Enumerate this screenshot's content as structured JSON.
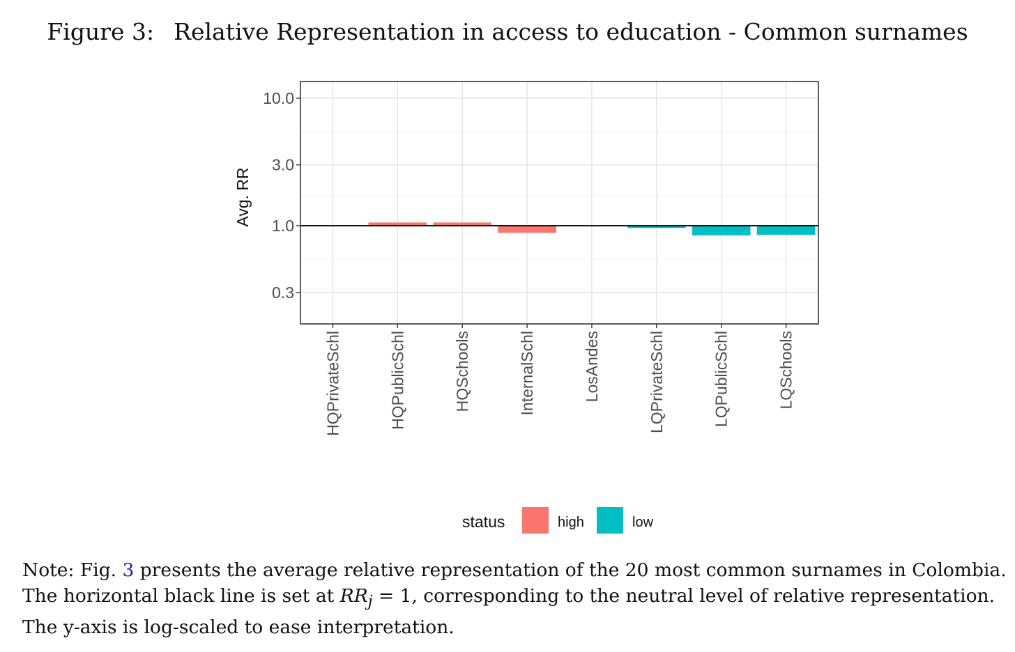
{
  "figure": {
    "number_label": "Figure 3:",
    "title": "Relative Representation in access to education - Common surnames"
  },
  "chart_data": {
    "type": "bar",
    "categories": [
      "HQPrivateSchl",
      "HQPublicSchl",
      "HQSchools",
      "InternalSchl",
      "LosAndes",
      "LQPrivateSchl",
      "LQPublicSchl",
      "LQSchools"
    ],
    "values": [
      1.0,
      1.06,
      1.06,
      0.88,
      1.0,
      0.96,
      0.84,
      0.85
    ],
    "status": [
      "high",
      "high",
      "high",
      "high",
      "high",
      "low",
      "low",
      "low"
    ],
    "ylabel": "Avg. RR",
    "xlabel": "",
    "yscale": "log10",
    "ylim": [
      0.17,
      13.5
    ],
    "yticks": [
      10.0,
      3.0,
      1.0,
      0.3
    ],
    "ytick_labels": [
      "10.0",
      "3.0",
      "1.0",
      "0.3"
    ],
    "reference_line": 1.0,
    "grid": true,
    "legend": {
      "title": "status",
      "placement": "bottom",
      "entries": [
        {
          "label": "high",
          "color": "#F8766D"
        },
        {
          "label": "low",
          "color": "#00BFC4"
        }
      ]
    }
  },
  "note": {
    "line1_a": "Note: Fig. ",
    "line1_ref": "3",
    "line1_b": " presents the average relative representation of the 20 most common surnames in Colombia.",
    "line2_a": "The horizontal black line is set at ",
    "line2_math": "RR",
    "line2_sub": "j",
    "line2_eq": " = 1",
    "line2_b": ", corresponding to the neutral level of relative representation.",
    "line3": "The y-axis is log-scaled to ease interpretation."
  }
}
